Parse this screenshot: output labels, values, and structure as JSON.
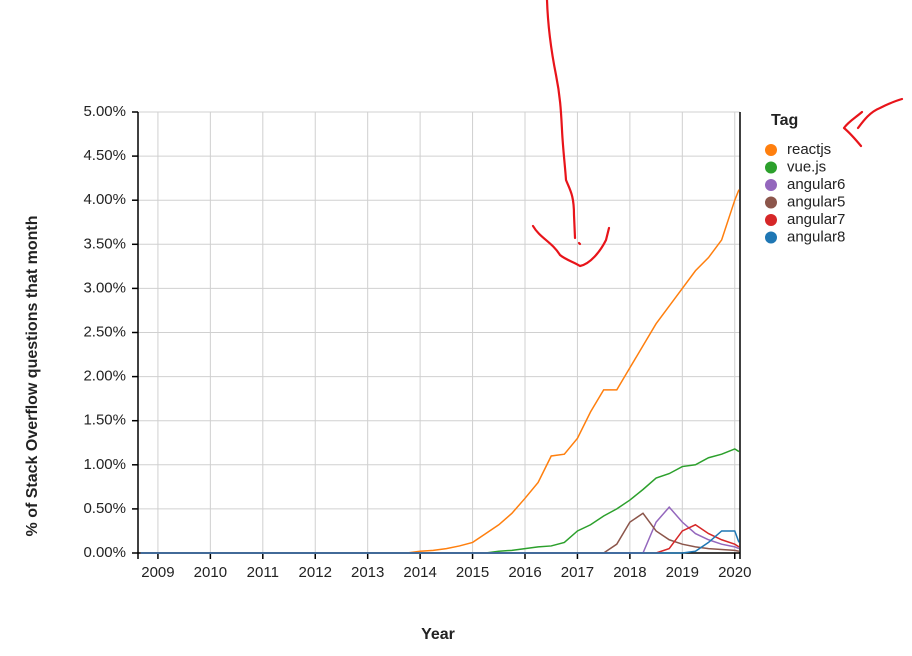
{
  "chart_data": {
    "type": "line",
    "x_label": "Year",
    "y_label": "% of Stack Overflow questions that month",
    "legend_title": "Tag",
    "legend": "right",
    "grid": true,
    "xlim": [
      2008.62,
      2020.1
    ],
    "xticks": [
      2009,
      2010,
      2011,
      2012,
      2013,
      2014,
      2015,
      2016,
      2017,
      2018,
      2019,
      2020
    ],
    "ylim": [
      0,
      5
    ],
    "yticks": [
      {
        "value": 0,
        "label": "0.00%"
      },
      {
        "value": 0.5,
        "label": "0.50%"
      },
      {
        "value": 1,
        "label": "1.00%"
      },
      {
        "value": 1.5,
        "label": "1.50%"
      },
      {
        "value": 2,
        "label": "2.00%"
      },
      {
        "value": 2.5,
        "label": "2.50%"
      },
      {
        "value": 3,
        "label": "3.00%"
      },
      {
        "value": 3.5,
        "label": "3.50%"
      },
      {
        "value": 4,
        "label": "4.00%"
      },
      {
        "value": 4.5,
        "label": "4.50%"
      },
      {
        "value": 5,
        "label": "5.00%"
      }
    ],
    "x": [
      2008.67,
      2010,
      2011,
      2012,
      2013,
      2013.75,
      2014,
      2014.25,
      2014.5,
      2014.75,
      2015,
      2015.25,
      2015.5,
      2015.75,
      2016,
      2016.25,
      2016.5,
      2016.75,
      2017,
      2017.25,
      2017.5,
      2017.75,
      2018,
      2018.25,
      2018.5,
      2018.75,
      2019,
      2019.25,
      2019.5,
      2019.75,
      2020,
      2020.08
    ],
    "series": [
      {
        "name": "reactjs",
        "color": "#ff7f0e",
        "values": [
          0,
          0,
          0,
          0,
          0,
          0,
          0.02,
          0.03,
          0.05,
          0.08,
          0.12,
          0.22,
          0.32,
          0.45,
          0.62,
          0.8,
          1.1,
          1.12,
          1.3,
          1.6,
          1.85,
          1.85,
          2.1,
          2.35,
          2.6,
          2.8,
          3.0,
          3.2,
          3.35,
          3.55,
          4.0,
          4.12
        ]
      },
      {
        "name": "vue.js",
        "color": "#2ca02c",
        "values": [
          0,
          0,
          0,
          0,
          0,
          0,
          0,
          0,
          0,
          0,
          0,
          0,
          0.02,
          0.03,
          0.05,
          0.07,
          0.08,
          0.12,
          0.25,
          0.32,
          0.42,
          0.5,
          0.6,
          0.72,
          0.85,
          0.9,
          0.98,
          1.0,
          1.08,
          1.12,
          1.18,
          1.15
        ]
      },
      {
        "name": "angular6",
        "color": "#9467bd",
        "values": [
          0,
          0,
          0,
          0,
          0,
          0,
          0,
          0,
          0,
          0,
          0,
          0,
          0,
          0,
          0,
          0,
          0,
          0,
          0,
          0,
          0,
          0,
          0,
          0,
          0.35,
          0.52,
          0.35,
          0.22,
          0.15,
          0.1,
          0.07,
          0.05
        ]
      },
      {
        "name": "angular5",
        "color": "#8c564b",
        "values": [
          0,
          0,
          0,
          0,
          0,
          0,
          0,
          0,
          0,
          0,
          0,
          0,
          0,
          0,
          0,
          0,
          0,
          0,
          0,
          0,
          0,
          0.1,
          0.35,
          0.45,
          0.25,
          0.15,
          0.1,
          0.07,
          0.05,
          0.04,
          0.03,
          0.02
        ]
      },
      {
        "name": "angular7",
        "color": "#d62728",
        "values": [
          0,
          0,
          0,
          0,
          0,
          0,
          0,
          0,
          0,
          0,
          0,
          0,
          0,
          0,
          0,
          0,
          0,
          0,
          0,
          0,
          0,
          0,
          0,
          0,
          0,
          0.05,
          0.25,
          0.32,
          0.22,
          0.15,
          0.1,
          0.07
        ]
      },
      {
        "name": "angular8",
        "color": "#1f77b4",
        "values": [
          0,
          0,
          0,
          0,
          0,
          0,
          0,
          0,
          0,
          0,
          0,
          0,
          0,
          0,
          0,
          0,
          0,
          0,
          0,
          0,
          0,
          0,
          0,
          0,
          0,
          0,
          0,
          0.02,
          0.12,
          0.25,
          0.25,
          0.12
        ]
      }
    ]
  }
}
